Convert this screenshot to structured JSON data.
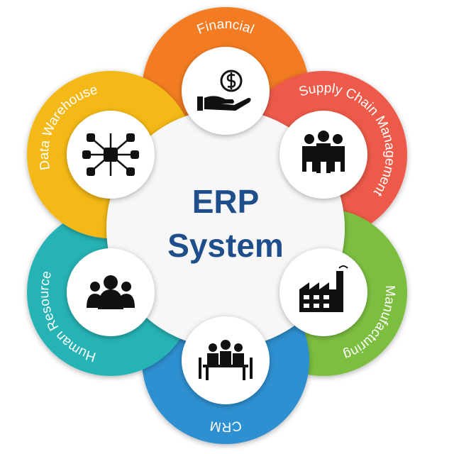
{
  "center": {
    "line1": "ERP",
    "line2": "System"
  },
  "modules": [
    {
      "label": "Financial"
    },
    {
      "label": "Supply Chain Management"
    },
    {
      "label": "Manufacturing"
    },
    {
      "label": "CRM"
    },
    {
      "label": "Human Resource"
    },
    {
      "label": "Data Warehouse"
    }
  ]
}
